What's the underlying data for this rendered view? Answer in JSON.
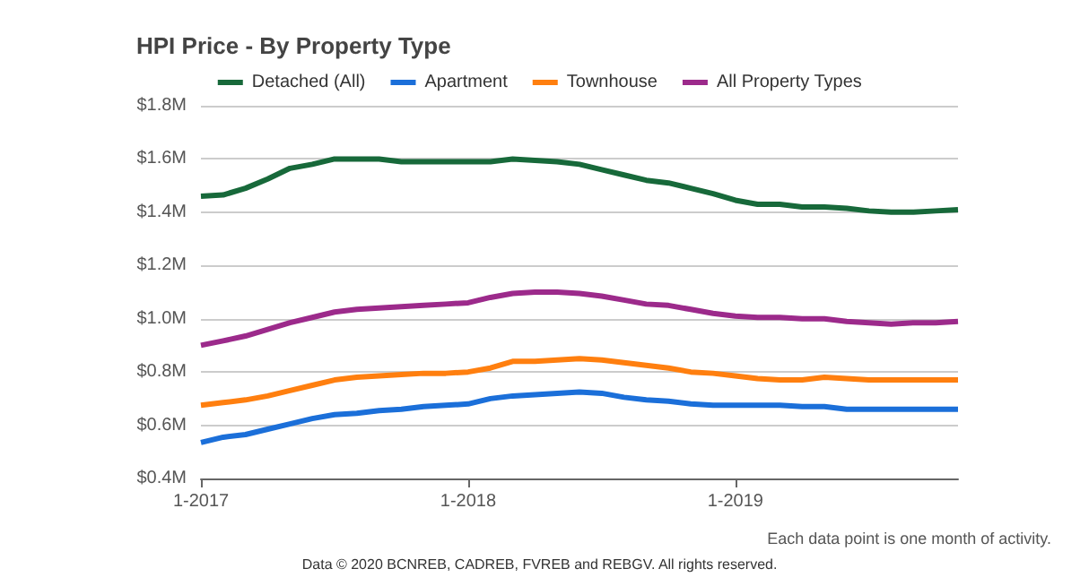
{
  "chart_data": {
    "type": "line",
    "title": "HPI Price - By Property Type",
    "categories": [
      "1-2017",
      null,
      null,
      null,
      null,
      null,
      null,
      null,
      null,
      null,
      null,
      null,
      "1-2018",
      null,
      null,
      null,
      null,
      null,
      null,
      null,
      null,
      null,
      null,
      null,
      "1-2019",
      null,
      null,
      null,
      null,
      null,
      null,
      null,
      null,
      null,
      null
    ],
    "series": [
      {
        "name": "Detached (All)",
        "color": "#17693a",
        "values": [
          1.46,
          1.465,
          1.49,
          1.525,
          1.565,
          1.58,
          1.6,
          1.6,
          1.6,
          1.59,
          1.59,
          1.59,
          1.59,
          1.59,
          1.6,
          1.595,
          1.59,
          1.58,
          1.56,
          1.54,
          1.52,
          1.51,
          1.49,
          1.47,
          1.445,
          1.43,
          1.43,
          1.42,
          1.42,
          1.415,
          1.405,
          1.4,
          1.4,
          1.405,
          1.41
        ]
      },
      {
        "name": "Apartment",
        "color": "#1b6fd9",
        "values": [
          0.535,
          0.555,
          0.565,
          0.585,
          0.605,
          0.625,
          0.64,
          0.645,
          0.655,
          0.66,
          0.67,
          0.675,
          0.68,
          0.7,
          0.71,
          0.715,
          0.72,
          0.725,
          0.72,
          0.705,
          0.695,
          0.69,
          0.68,
          0.675,
          0.675,
          0.675,
          0.675,
          0.67,
          0.67,
          0.66,
          0.66,
          0.66,
          0.66,
          0.66,
          0.66
        ]
      },
      {
        "name": "Townhouse",
        "color": "#ff7f0f",
        "values": [
          0.675,
          0.685,
          0.695,
          0.71,
          0.73,
          0.75,
          0.77,
          0.78,
          0.785,
          0.79,
          0.795,
          0.795,
          0.8,
          0.815,
          0.84,
          0.84,
          0.845,
          0.85,
          0.845,
          0.835,
          0.825,
          0.815,
          0.8,
          0.795,
          0.785,
          0.775,
          0.77,
          0.77,
          0.78,
          0.775,
          0.77,
          0.77,
          0.77,
          0.77,
          0.77
        ]
      },
      {
        "name": "All Property Types",
        "color": "#9c2a8b",
        "values": [
          0.9,
          0.917,
          0.935,
          0.96,
          0.985,
          1.005,
          1.025,
          1.035,
          1.04,
          1.045,
          1.05,
          1.055,
          1.06,
          1.08,
          1.095,
          1.1,
          1.1,
          1.095,
          1.085,
          1.07,
          1.055,
          1.05,
          1.035,
          1.02,
          1.01,
          1.005,
          1.005,
          1.0,
          1.0,
          0.99,
          0.985,
          0.98,
          0.985,
          0.985,
          0.99
        ]
      }
    ],
    "ylim": [
      0.4,
      1.8
    ],
    "yticks": [
      {
        "value": 0.4,
        "label": "$0.4M"
      },
      {
        "value": 0.6,
        "label": "$0.6M"
      },
      {
        "value": 0.8,
        "label": "$0.8M"
      },
      {
        "value": 1.0,
        "label": "$1.0M"
      },
      {
        "value": 1.2,
        "label": "$1.2M"
      },
      {
        "value": 1.4,
        "label": "$1.4M"
      },
      {
        "value": 1.6,
        "label": "$1.6M"
      },
      {
        "value": 1.8,
        "label": "$1.8M"
      }
    ],
    "grid": "y",
    "legend": "top",
    "marker": "none",
    "line_style": "solid",
    "annotations": [
      "Each data point is one month of activity.",
      "Data © 2020 BCNREB, CADREB, FVREB and REBGV. All rights reserved."
    ]
  }
}
